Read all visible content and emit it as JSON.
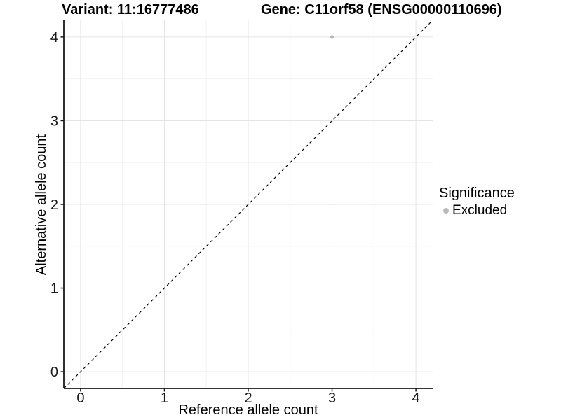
{
  "chart_data": {
    "type": "scatter",
    "title_left": "Variant: 11:16777486",
    "title_right": "Gene: C11orf58 (ENSG00000110696)",
    "xlabel": "Reference allele count",
    "ylabel": "Alternative allele count",
    "xlim": [
      -0.2,
      4.2
    ],
    "ylim": [
      -0.2,
      4.2
    ],
    "x_ticks": [
      0,
      1,
      2,
      3,
      4
    ],
    "y_ticks": [
      0,
      1,
      2,
      3,
      4
    ],
    "x_minor_ticks": [
      0.5,
      1.5,
      2.5,
      3.5
    ],
    "y_minor_ticks": [
      0.5,
      1.5,
      2.5,
      3.5
    ],
    "grid": true,
    "identity_line": {
      "style": "dashed",
      "from": [
        -0.2,
        -0.2
      ],
      "to": [
        4.2,
        4.2
      ],
      "color": "#000000"
    },
    "series": [
      {
        "name": "Excluded",
        "color": "#b9b9b9",
        "point_radius": 2.6,
        "points": [
          {
            "x": 3,
            "y": 4
          }
        ]
      }
    ],
    "legend": {
      "title": "Significance",
      "position": "right",
      "entries": [
        {
          "label": "Excluded",
          "color": "#b9b9b9"
        }
      ]
    },
    "colors": {
      "background": "#ffffff",
      "grid_major": "#e4e4e4",
      "grid_minor": "#f2f2f2",
      "axis_line": "#1a1a1a",
      "tick_label": "#1a1a1a",
      "title": "#000000"
    }
  }
}
